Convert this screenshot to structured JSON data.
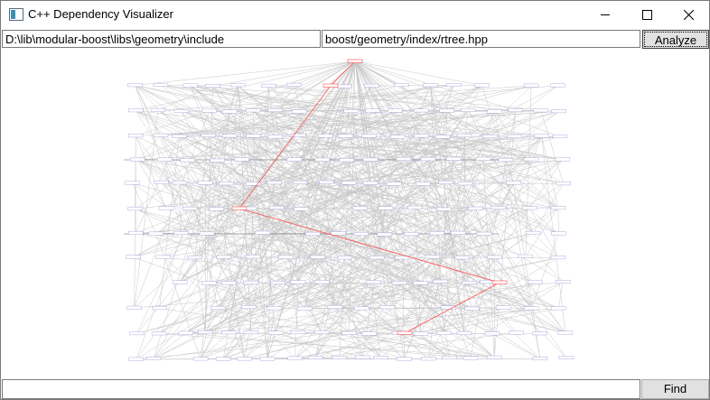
{
  "window": {
    "title": "C++ Dependency Visualizer",
    "icon": "app-window-icon",
    "controls": [
      "minimize-icon",
      "maximize-icon",
      "close-icon"
    ]
  },
  "toolbar": {
    "include_path": "D:\\lib\\modular-boost\\libs\\geometry\\include",
    "header_file": "boost/geometry/index/rtree.hpp",
    "analyze_label": "Analyze"
  },
  "footer": {
    "find_value": "",
    "find_label": "Find"
  },
  "graph": {
    "edge_color": "#c8c8c8",
    "highlight_color": "#ff5050",
    "node_color": "#3333cc"
  }
}
